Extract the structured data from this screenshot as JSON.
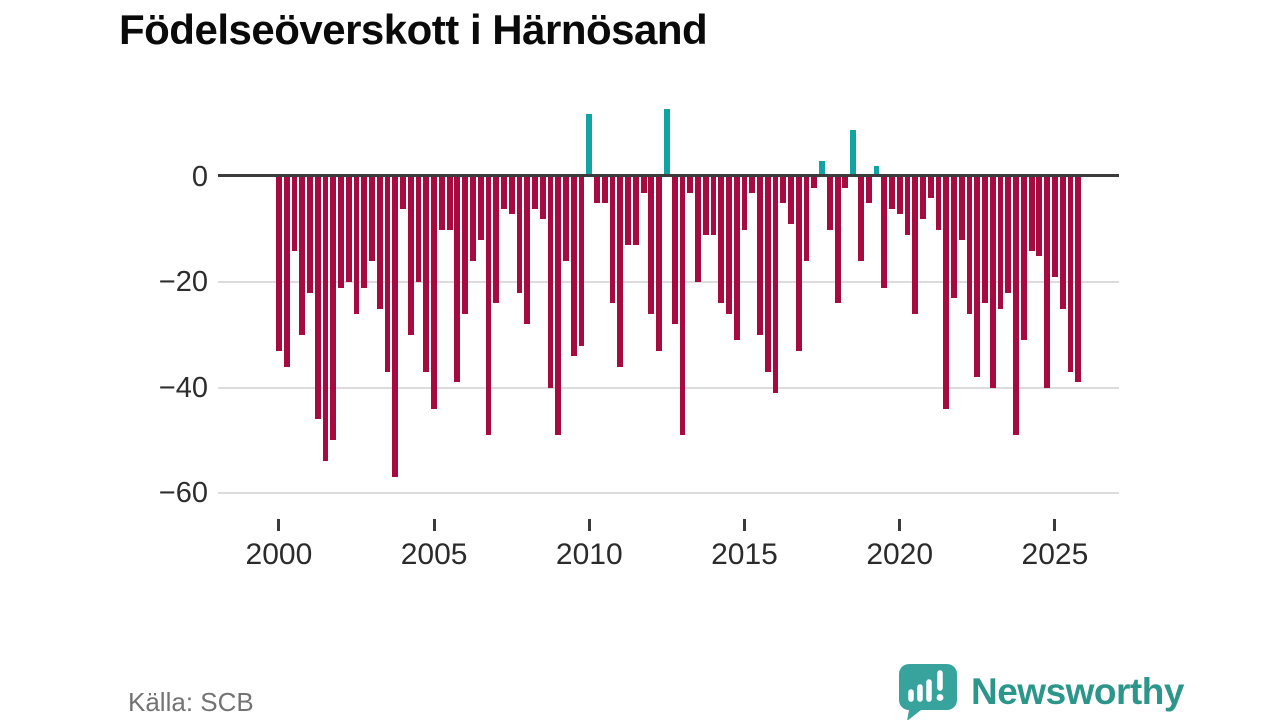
{
  "title": "Födelseöverskott i Härnösand",
  "source": "Källa: SCB",
  "branding": {
    "name": "Newsworthy"
  },
  "colors": {
    "negative": "#a60a3e",
    "positive": "#12a3a3",
    "zero_axis": "#3c3c3c",
    "grid": "#dcdcdc",
    "tick": "#3a3a3a",
    "brand_text": "#2c968b",
    "brand_icon": "#38a39d"
  },
  "chart_data": {
    "type": "bar",
    "frequency": "quarterly",
    "start_year": 2000,
    "end_year": 2025,
    "values": [
      -33,
      -36,
      -14,
      -30,
      -22,
      -46,
      -54,
      -50,
      -21,
      -20,
      -26,
      -21,
      -16,
      -25,
      -37,
      -57,
      -6,
      -30,
      -20,
      -37,
      -44,
      -10,
      -10,
      -39,
      -26,
      -16,
      -12,
      -49,
      -24,
      -6,
      -7,
      -22,
      -28,
      -6,
      -8,
      -40,
      -49,
      -16,
      -34,
      -32,
      12,
      -5,
      -5,
      -24,
      -36,
      -13,
      -13,
      -3,
      -26,
      -33,
      13,
      -28,
      -49,
      -3,
      -20,
      -11,
      -11,
      -24,
      -26,
      -31,
      -10,
      -3,
      -30,
      -37,
      -41,
      -5,
      -9,
      -33,
      -16,
      -2,
      3,
      -10,
      -24,
      -2,
      9,
      -16,
      -5,
      2,
      -21,
      -6,
      -7,
      -11,
      -26,
      -8,
      -4,
      -10,
      -44,
      -23,
      -12,
      -26,
      -38,
      -24,
      -40,
      -25,
      -22,
      -49,
      -31,
      -14,
      -15,
      -40,
      -19,
      -25,
      -37,
      -39
    ],
    "ylim": [
      -60,
      14
    ],
    "yticks": [
      0,
      -20,
      -40,
      -60
    ],
    "xticks": [
      2000,
      2005,
      2010,
      2015,
      2020,
      2025
    ],
    "grid": true,
    "legend": null,
    "xlabel": "",
    "ylabel": ""
  }
}
